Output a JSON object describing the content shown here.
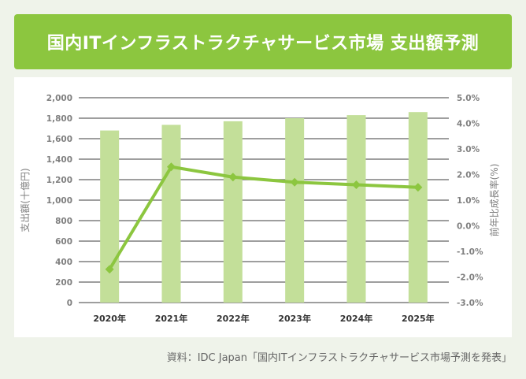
{
  "header": {
    "title": "国内ITインフラストラクチャサービス市場 支出額予測"
  },
  "source": "資料：IDC Japan「国内ITインフラストラクチャサービス市場予測を発表」",
  "colors": {
    "title_bg": "#8cc63f",
    "bar": "#c3df99",
    "line": "#8cc63f",
    "axis_text": "#7f7f7f",
    "grid": "#7f7f7f"
  },
  "chart_data": {
    "type": "bar",
    "categories": [
      "2020年",
      "2021年",
      "2022年",
      "2023年",
      "2024年",
      "2025年"
    ],
    "series": [
      {
        "name": "支出額",
        "type": "bar",
        "axis": "left",
        "values": [
          1680,
          1735,
          1770,
          1800,
          1830,
          1860
        ]
      },
      {
        "name": "前年比成長率",
        "type": "line",
        "axis": "right",
        "values": [
          -1.7,
          2.3,
          1.9,
          1.7,
          1.6,
          1.5
        ]
      }
    ],
    "ylabel": "支出額(十億円)",
    "ylabel_right": "前年比成長率(%)",
    "ylim": [
      0,
      2000
    ],
    "ylim_right": [
      -3,
      5
    ],
    "yticks": [
      "0",
      "200",
      "400",
      "600",
      "800",
      "1,000",
      "1,200",
      "1,400",
      "1,600",
      "1,800",
      "2,000"
    ],
    "yticks_right": [
      "-3.0%",
      "-2.0%",
      "-1.0%",
      "0.0%",
      "1.0%",
      "2.0%",
      "3.0%",
      "4.0%",
      "5.0%"
    ],
    "grid": true
  }
}
